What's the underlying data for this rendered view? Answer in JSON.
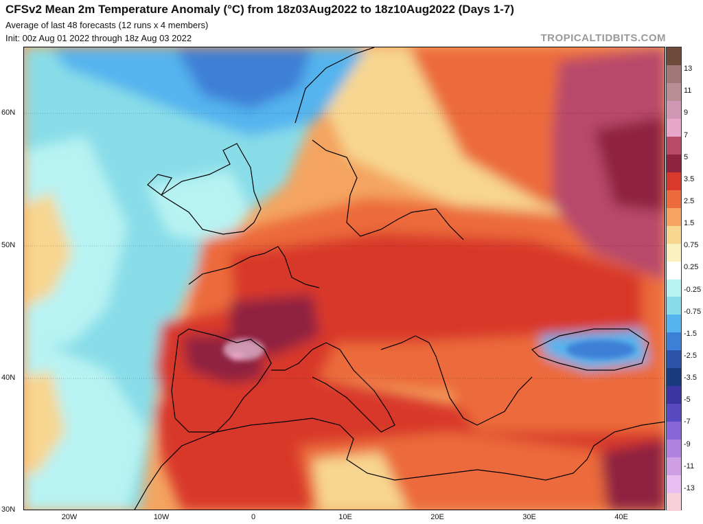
{
  "header": {
    "title": "CFSv2 Mean 2m Temperature Anomaly (°C) from 18z03Aug2022 to 18z10Aug2022 (Days 1-7)",
    "subtitle_1": "Average of last 48 forecasts (12 runs x 4 members)",
    "subtitle_2": "Init: 00z Aug 01 2022 through 18z Aug 03 2022"
  },
  "brand": "TROPICALTIDBITS.COM",
  "axes": {
    "lat_labels": [
      "60N",
      "50N",
      "40N",
      "30N"
    ],
    "lon_labels": [
      "20W",
      "10W",
      "0",
      "10E",
      "20E",
      "30E",
      "40E"
    ]
  },
  "legend": {
    "labels": [
      "13",
      "11",
      "9",
      "7",
      "5",
      "3.5",
      "2.5",
      "1.5",
      "0.75",
      "0.25",
      "-0.25",
      "-0.75",
      "-1.5",
      "-2.5",
      "-3.5",
      "-5",
      "-7",
      "-9",
      "-11",
      "-13"
    ],
    "colors": [
      "#6e4a3a",
      "#a07878",
      "#b98e94",
      "#cf97b1",
      "#e8a6c8",
      "#b84a6a",
      "#8e2440",
      "#d8392b",
      "#ec6a3b",
      "#f4a460",
      "#f7d690",
      "#fbf0c0",
      "#ffffff",
      "#b8f3f3",
      "#88dde8",
      "#55b4ee",
      "#3c7fd6",
      "#2b54a8",
      "#1a3a7f",
      "#3a35a0",
      "#5a4ac2",
      "#8866d8",
      "#b083e2",
      "#cf9fe6",
      "#e8bff0",
      "#f6d0d8"
    ]
  },
  "colors": {
    "strong_warm": "#8e2440",
    "warm": "#d8392b",
    "mild_warm": "#f4a460",
    "cool": "#88dde8",
    "cold": "#3c7fd6"
  }
}
